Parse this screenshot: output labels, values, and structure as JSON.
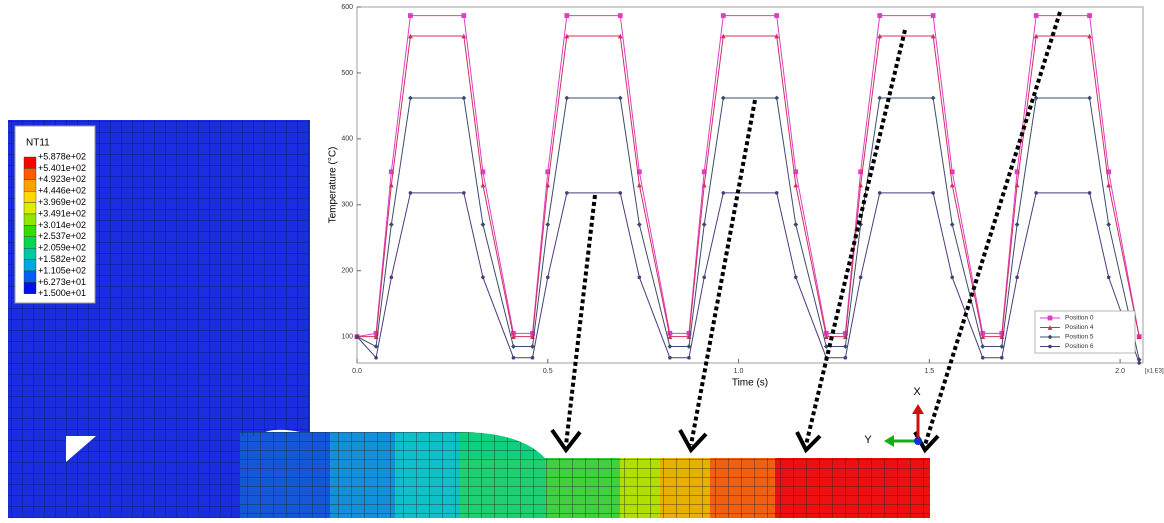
{
  "chart_data": {
    "type": "line",
    "x_label": "Time (s)",
    "y_label": "Temperature (°C)",
    "x_multiplier": "[x1.E3]",
    "x": [
      0,
      0.05,
      0.09,
      0.14,
      0.28,
      0.33,
      0.41,
      0.46,
      0.5,
      0.55,
      0.69,
      0.74,
      0.82,
      0.87,
      0.91,
      0.96,
      1.1,
      1.15,
      1.23,
      1.28,
      1.32,
      1.37,
      1.51,
      1.56,
      1.64,
      1.69,
      1.73,
      1.78,
      1.92,
      1.97,
      2.05
    ],
    "series": [
      {
        "name": "Position 0",
        "color": "#e03cc8",
        "marker": "square",
        "values": [
          100,
          105,
          350,
          587,
          587,
          350,
          105,
          105,
          350,
          587,
          587,
          350,
          105,
          105,
          350,
          587,
          587,
          350,
          105,
          105,
          350,
          587,
          587,
          350,
          105,
          105,
          350,
          587,
          587,
          350,
          100
        ]
      },
      {
        "name": "Position 4",
        "color": "#d0305c",
        "marker": "triangle",
        "values": [
          100,
          100,
          330,
          556,
          556,
          330,
          100,
          100,
          330,
          556,
          556,
          330,
          100,
          100,
          330,
          556,
          556,
          330,
          100,
          100,
          330,
          556,
          556,
          330,
          100,
          100,
          330,
          556,
          556,
          330,
          100
        ]
      },
      {
        "name": "Position 5",
        "color": "#3c4c6c",
        "marker": "diamond",
        "values": [
          100,
          85,
          270,
          462,
          462,
          270,
          85,
          85,
          270,
          462,
          462,
          270,
          85,
          85,
          270,
          462,
          462,
          270,
          85,
          85,
          270,
          462,
          462,
          270,
          85,
          85,
          270,
          462,
          462,
          270,
          65
        ]
      },
      {
        "name": "Position 6",
        "color": "#4c3c7c",
        "marker": "circle",
        "values": [
          100,
          68,
          190,
          318,
          318,
          190,
          68,
          68,
          190,
          318,
          318,
          190,
          68,
          68,
          190,
          318,
          318,
          190,
          68,
          68,
          190,
          318,
          318,
          190,
          68,
          68,
          190,
          318,
          318,
          190,
          60
        ]
      }
    ],
    "xlim": [
      0,
      2.06
    ],
    "xticks": [
      {
        "value": 0,
        "label": "0.0"
      },
      0.5,
      {
        "value": 1,
        "label": "1.0"
      },
      1.5,
      {
        "value": 2,
        "label": "2.0"
      }
    ],
    "ylim": [
      60,
      600
    ],
    "yticks": [
      100,
      200,
      300,
      400,
      500,
      600
    ],
    "legend": "lower-right"
  },
  "contour_legend": {
    "title": "NT11",
    "labels": [
      "+5.878e+02",
      "+5.401e+02",
      "+4.923e+02",
      "+4.446e+02",
      "+3.969e+02",
      "+3.491e+02",
      "+3.014e+02",
      "+2.537e+02",
      "+2.059e+02",
      "+1.582e+02",
      "+1.105e+02",
      "+6.273e+01",
      "+1.500e+01"
    ],
    "colors": [
      "#ff0000",
      "#ff5a00",
      "#ffa000",
      "#ffd800",
      "#d8f000",
      "#90e800",
      "#30e000",
      "#00d850",
      "#00c8a0",
      "#00a8e0",
      "#0060f0",
      "#0010e8"
    ]
  },
  "triad": {
    "x": "X",
    "y": "Y"
  }
}
